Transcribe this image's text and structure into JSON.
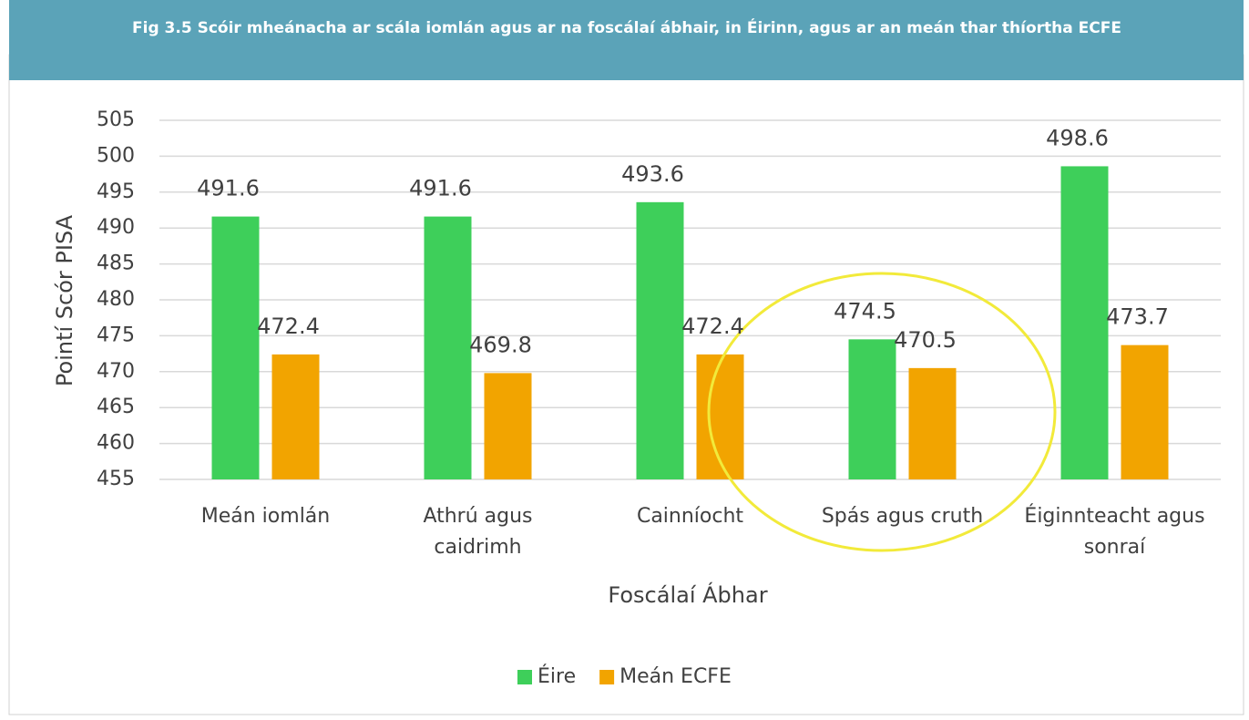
{
  "chart_data": {
    "type": "bar",
    "title": "Fig 3.5 Scóir mheánacha ar scála iomlán agus ar na foscálaí ábhair, in Éirinn, agus ar an meán thar thíortha ECFE",
    "categories": [
      "Meán iomlán",
      "Athrú agus caidrimh",
      "Cainníocht",
      "Spás agus cruth",
      "Éiginnteacht agus sonraí"
    ],
    "series": [
      {
        "name": "Éire",
        "color": "#3ecf5a",
        "values": [
          491.6,
          491.6,
          493.6,
          474.5,
          498.6
        ]
      },
      {
        "name": "Meán ECFE",
        "color": "#f2a400",
        "values": [
          472.4,
          469.8,
          472.4,
          470.5,
          473.7
        ]
      }
    ],
    "xlabel": "Foscálaí Ábhar",
    "ylabel": "Pointí Scór PISA",
    "ylim": [
      455,
      505
    ],
    "yticks": [
      455,
      460,
      465,
      470,
      475,
      480,
      485,
      490,
      495,
      500,
      505
    ],
    "grid": true,
    "legend": "bottom"
  }
}
